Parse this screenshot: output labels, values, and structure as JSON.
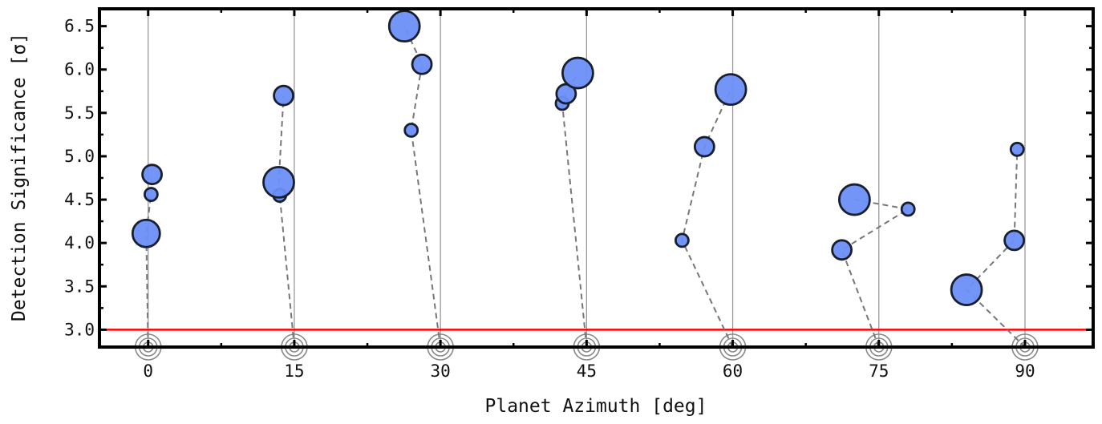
{
  "chart_data": {
    "type": "scatter",
    "title": "",
    "xlabel": "Planet Azimuth [deg]",
    "ylabel": "Detection Significance [σ]",
    "xlim": [
      -5,
      97
    ],
    "ylim": [
      2.8,
      6.7
    ],
    "x_ticks": [
      0,
      15,
      30,
      45,
      60,
      75,
      90
    ],
    "x_tick_labels": [
      "0",
      "15",
      "30",
      "45",
      "60",
      "75",
      "90"
    ],
    "y_ticks": [
      3.0,
      3.5,
      4.0,
      4.5,
      5.0,
      5.5,
      6.0,
      6.5
    ],
    "y_tick_labels": [
      "3.0",
      "3.5",
      "4.0",
      "4.5",
      "5.0",
      "5.5",
      "6.0",
      "6.5"
    ],
    "threshold": {
      "y": 3.0,
      "color": "#ff0000"
    },
    "point_color": "#6b8ff7",
    "point_edge_color": "#1a1f2e",
    "line_color": "#777777",
    "grid": "vertical lines at x ticks",
    "groups": [
      {
        "azimuth": 0,
        "points": [
          {
            "x": -0.2,
            "y": 4.11,
            "size": 3
          },
          {
            "x": 0.3,
            "y": 4.56,
            "size": 1
          },
          {
            "x": 0.4,
            "y": 4.79,
            "size": 2
          }
        ]
      },
      {
        "azimuth": 15,
        "points": [
          {
            "x": 13.5,
            "y": 4.55,
            "size": 1
          },
          {
            "x": 13.4,
            "y": 4.7,
            "size": 4
          },
          {
            "x": 13.9,
            "y": 5.7,
            "size": 2
          }
        ]
      },
      {
        "azimuth": 30,
        "points": [
          {
            "x": 27.0,
            "y": 5.3,
            "size": 1
          },
          {
            "x": 28.1,
            "y": 6.06,
            "size": 2
          },
          {
            "x": 26.3,
            "y": 6.5,
            "size": 4
          }
        ]
      },
      {
        "azimuth": 45,
        "points": [
          {
            "x": 42.5,
            "y": 5.61,
            "size": 1
          },
          {
            "x": 42.9,
            "y": 5.72,
            "size": 2
          },
          {
            "x": 44.1,
            "y": 5.96,
            "size": 4
          }
        ]
      },
      {
        "azimuth": 60,
        "points": [
          {
            "x": 54.8,
            "y": 4.03,
            "size": 1
          },
          {
            "x": 57.1,
            "y": 5.11,
            "size": 2
          },
          {
            "x": 59.8,
            "y": 5.77,
            "size": 4
          }
        ]
      },
      {
        "azimuth": 75,
        "points": [
          {
            "x": 71.2,
            "y": 3.92,
            "size": 2
          },
          {
            "x": 78.0,
            "y": 4.39,
            "size": 1
          },
          {
            "x": 72.5,
            "y": 4.5,
            "size": 4
          }
        ]
      },
      {
        "azimuth": 90,
        "points": [
          {
            "x": 84.0,
            "y": 3.46,
            "size": 4
          },
          {
            "x": 88.9,
            "y": 4.03,
            "size": 2
          },
          {
            "x": 89.2,
            "y": 5.08,
            "size": 1
          }
        ]
      }
    ]
  }
}
